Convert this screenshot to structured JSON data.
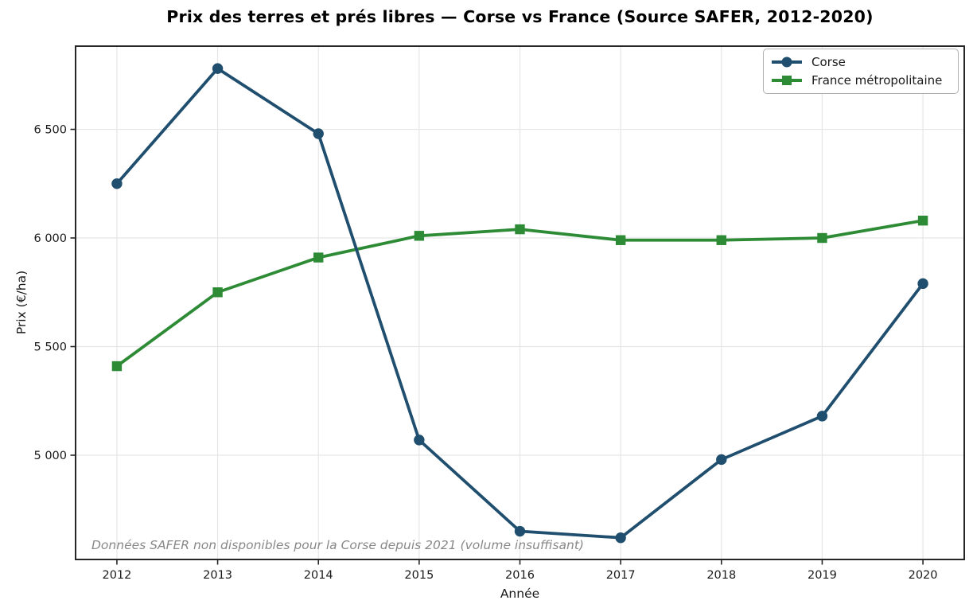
{
  "title": "Prix des terres et prés libres — Corse vs France (Source SAFER, 2012-2020)",
  "chart_data": {
    "type": "line",
    "title": "Prix des terres et prés libres — Corse vs France (Source SAFER, 2012-2020)",
    "xlabel": "Année",
    "ylabel": "Prix (€/ha)",
    "x": [
      2012,
      2013,
      2014,
      2015,
      2016,
      2017,
      2018,
      2019,
      2020
    ],
    "series": [
      {
        "name": "Corse",
        "color": "#1f4e6e",
        "marker": "circle",
        "values": [
          6250,
          6780,
          6480,
          5070,
          4650,
          4620,
          4980,
          5180,
          5790
        ]
      },
      {
        "name": "France métropolitaine",
        "color": "#2e8b35",
        "marker": "square",
        "values": [
          5410,
          5750,
          5910,
          6010,
          6040,
          5990,
          5990,
          6000,
          6080
        ]
      }
    ],
    "xticks": {
      "values": [
        2012,
        2013,
        2014,
        2015,
        2016,
        2017,
        2018,
        2019,
        2020
      ],
      "labels": [
        "2012",
        "2013",
        "2014",
        "2015",
        "2016",
        "2017",
        "2018",
        "2019",
        "2020"
      ]
    },
    "yticks": {
      "values": [
        5000,
        5500,
        6000,
        6500
      ],
      "labels": [
        "5 000",
        "5 500",
        "6 000",
        "6 500"
      ]
    },
    "xlim": [
      2011.59,
      2020.41
    ],
    "ylim": [
      4520,
      6883
    ],
    "grid": true,
    "legend": {
      "position": "upper right",
      "items": [
        "Corse",
        "France métropolitaine"
      ]
    },
    "annotation": {
      "text": "Données SAFER non disponibles pour la Corse depuis 2021 (volume insuffisant)",
      "color": "#888888"
    }
  },
  "styles": {
    "grid_color": "#e6e6e6",
    "spine_color": "#262626",
    "tick_color": "#262626",
    "tick_label_color": "#1a1a1a",
    "legend_border_color": "#b0b0b0",
    "background": "#ffffff"
  }
}
